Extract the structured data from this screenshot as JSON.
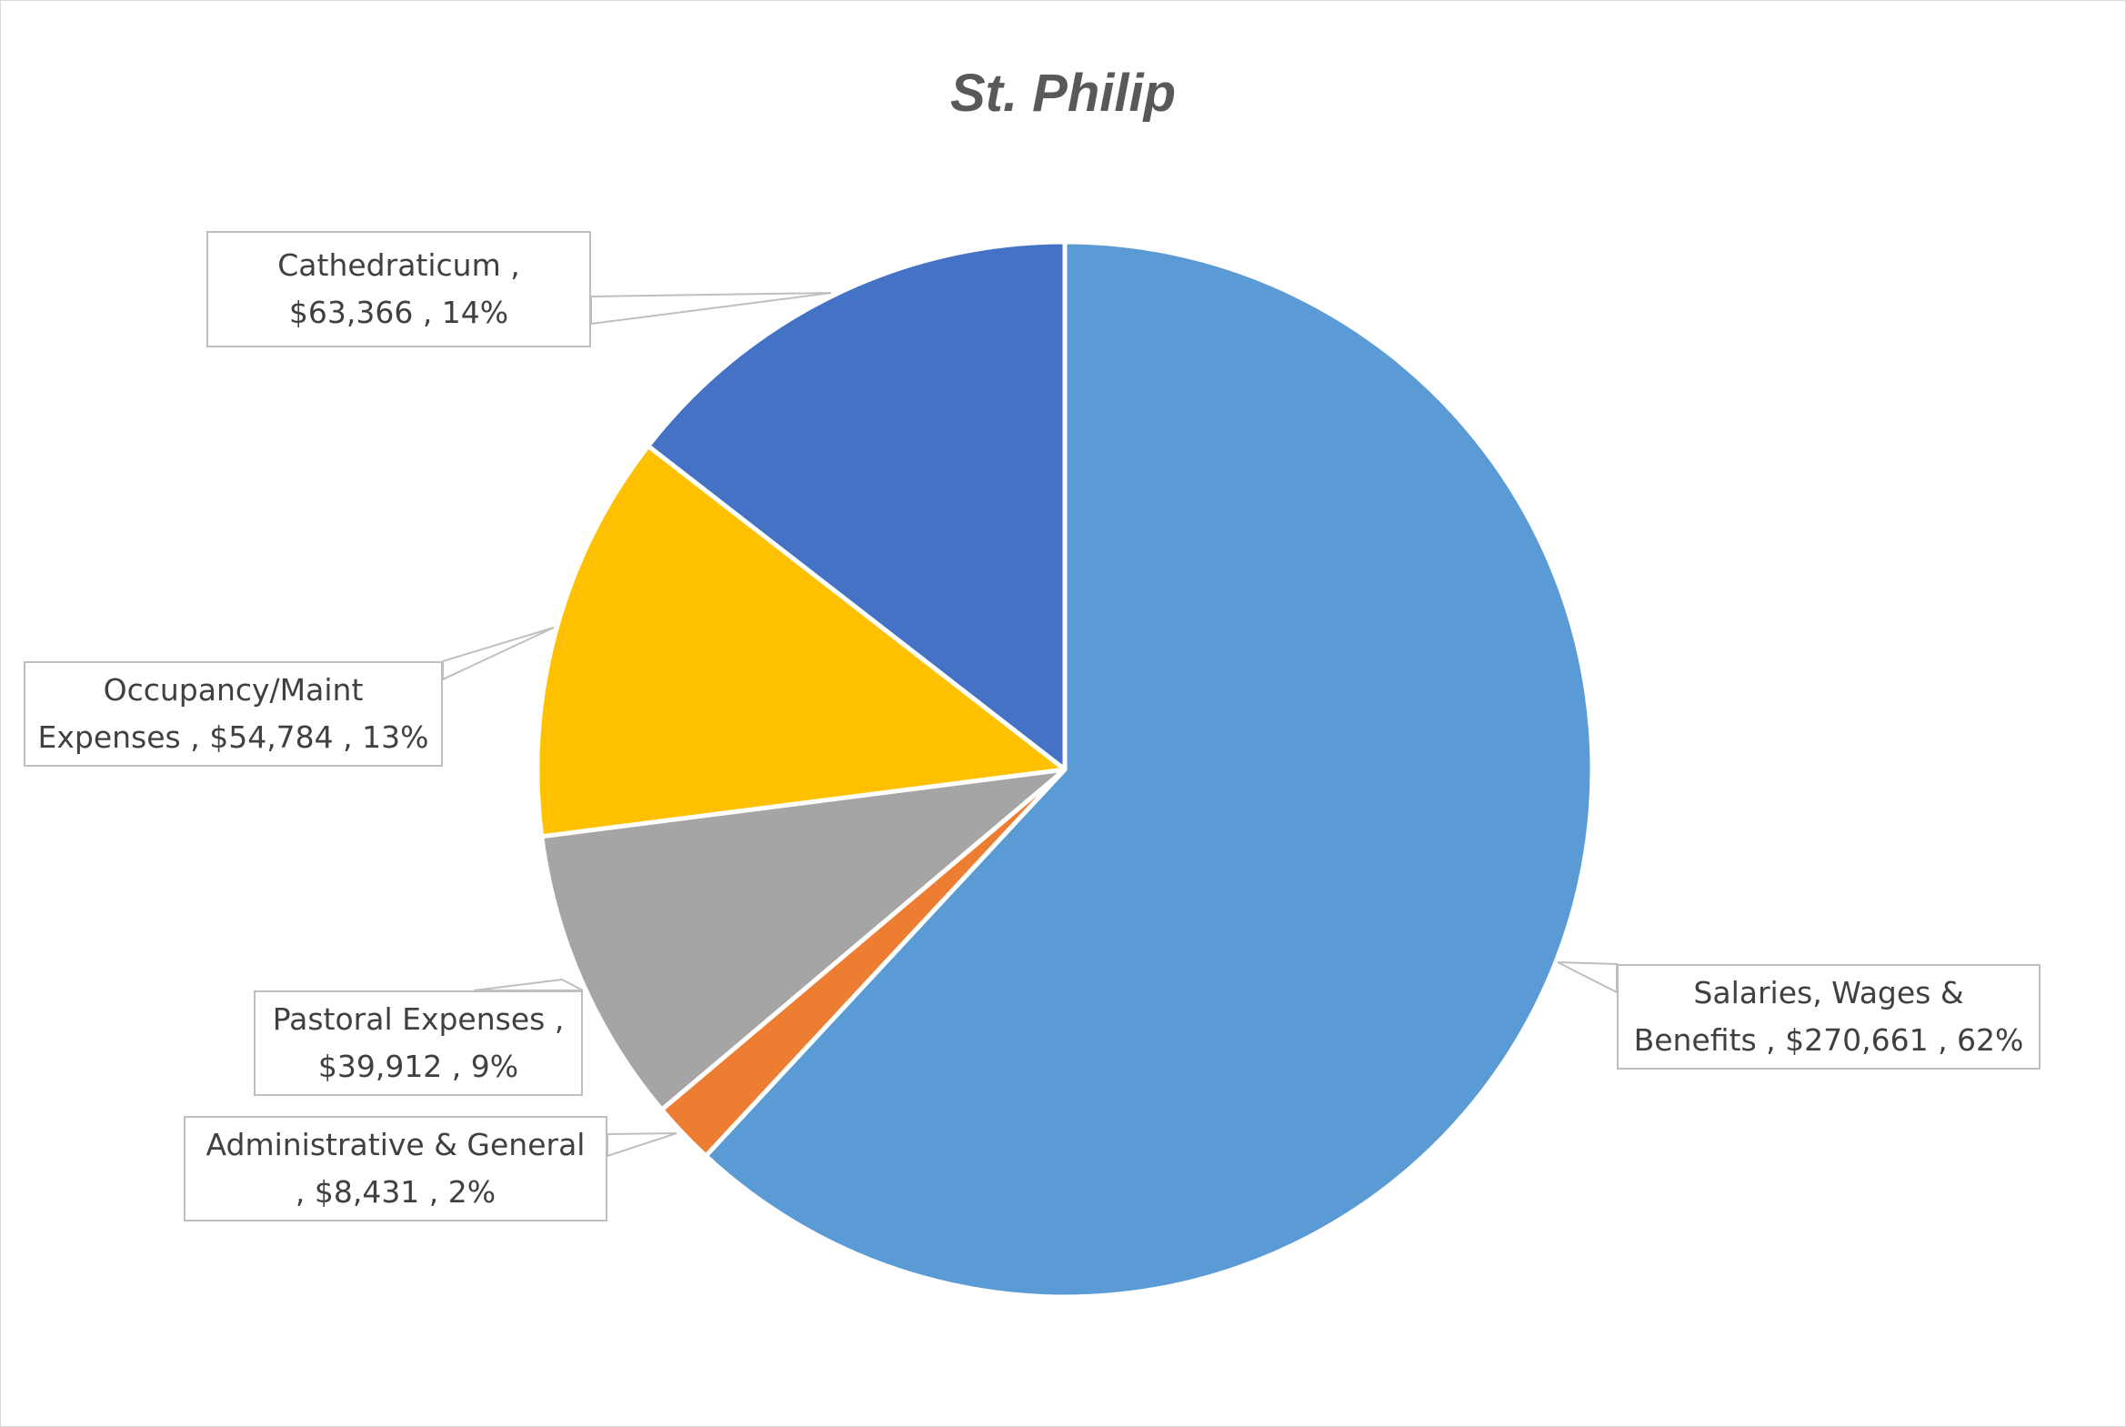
{
  "chart_data": {
    "type": "pie",
    "title": "St. Philip",
    "start_angle_deg": 0,
    "direction": "clockwise",
    "slices": [
      {
        "label": "Salaries, Wages & Benefits",
        "value": 270661,
        "percent": 62,
        "color": "#5B9BD5",
        "text_line1": "Salaries, Wages &",
        "text_line2": "Benefits ,  $270,661 , 62%"
      },
      {
        "label": "Administrative & General",
        "value": 8431,
        "percent": 2,
        "color": "#ED7D31",
        "text_line1": "Administrative & General",
        "text_line2": ",  $8,431 , 2%"
      },
      {
        "label": "Pastoral Expenses",
        "value": 39912,
        "percent": 9,
        "color": "#A5A5A5",
        "text_line1": "Pastoral Expenses ,",
        "text_line2": "$39,912 , 9%"
      },
      {
        "label": "Occupancy/Maint Expenses",
        "value": 54784,
        "percent": 13,
        "color": "#FFC000",
        "text_line1": "Occupancy/Maint",
        "text_line2": "Expenses ,  $54,784 , 13%"
      },
      {
        "label": "Cathedraticum",
        "value": 63366,
        "percent": 14,
        "color": "#4472C4",
        "text_line1": "Cathedraticum ,",
        "text_line2": "$63,366 , 14%"
      }
    ],
    "legend": "none",
    "data_labels": "callouts"
  }
}
